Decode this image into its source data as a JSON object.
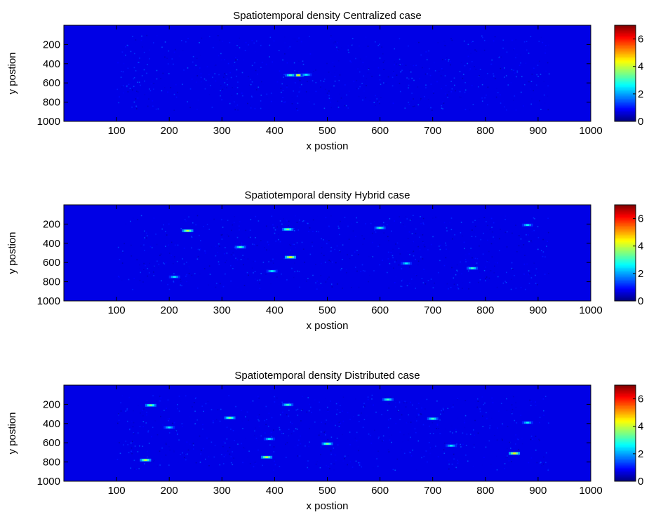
{
  "chart_data": [
    {
      "type": "heatmap",
      "title": "Spatiotemporal density Centralized case",
      "xlabel": "x postion",
      "ylabel": "y postion",
      "xlim": [
        0,
        1000
      ],
      "ylim": [
        0,
        1000
      ],
      "y_reversed": true,
      "xticks": [
        100,
        200,
        300,
        400,
        500,
        600,
        700,
        800,
        900,
        1000
      ],
      "yticks": [
        200,
        400,
        600,
        800,
        1000
      ],
      "colorbar": {
        "range": [
          0,
          7
        ],
        "ticks": [
          0,
          2,
          4,
          6
        ],
        "colormap": "jet"
      },
      "hotspots": [
        {
          "x": 445,
          "y": 520,
          "value": 4.5
        },
        {
          "x": 430,
          "y": 520,
          "value": 3.0
        },
        {
          "x": 460,
          "y": 515,
          "value": 2.5
        }
      ]
    },
    {
      "type": "heatmap",
      "title": "Spatiotemporal density Hybrid case",
      "xlabel": "x postion",
      "ylabel": "y postion",
      "xlim": [
        0,
        1000
      ],
      "ylim": [
        0,
        1000
      ],
      "y_reversed": true,
      "xticks": [
        100,
        200,
        300,
        400,
        500,
        600,
        700,
        800,
        900,
        1000
      ],
      "yticks": [
        200,
        400,
        600,
        800,
        1000
      ],
      "colorbar": {
        "range": [
          0,
          7
        ],
        "ticks": [
          0,
          2,
          4,
          6
        ],
        "colormap": "jet"
      },
      "hotspots": [
        {
          "x": 235,
          "y": 270,
          "value": 4.0
        },
        {
          "x": 425,
          "y": 255,
          "value": 3.5
        },
        {
          "x": 600,
          "y": 240,
          "value": 3.0
        },
        {
          "x": 335,
          "y": 440,
          "value": 3.0
        },
        {
          "x": 430,
          "y": 545,
          "value": 4.5
        },
        {
          "x": 775,
          "y": 660,
          "value": 3.0
        },
        {
          "x": 650,
          "y": 610,
          "value": 2.5
        },
        {
          "x": 210,
          "y": 750,
          "value": 2.5
        },
        {
          "x": 395,
          "y": 690,
          "value": 2.5
        },
        {
          "x": 880,
          "y": 210,
          "value": 2.5
        }
      ]
    },
    {
      "type": "heatmap",
      "title": "Spatiotemporal density Distributed case",
      "xlabel": "x postion",
      "ylabel": "y postion",
      "xlim": [
        0,
        1000
      ],
      "ylim": [
        0,
        1000
      ],
      "y_reversed": true,
      "xticks": [
        100,
        200,
        300,
        400,
        500,
        600,
        700,
        800,
        900,
        1000
      ],
      "yticks": [
        200,
        400,
        600,
        800,
        1000
      ],
      "colorbar": {
        "range": [
          0,
          7
        ],
        "ticks": [
          0,
          2,
          4,
          6
        ],
        "colormap": "jet"
      },
      "hotspots": [
        {
          "x": 165,
          "y": 210,
          "value": 3.5
        },
        {
          "x": 155,
          "y": 780,
          "value": 4.0
        },
        {
          "x": 200,
          "y": 440,
          "value": 2.5
        },
        {
          "x": 315,
          "y": 340,
          "value": 3.5
        },
        {
          "x": 385,
          "y": 750,
          "value": 4.0
        },
        {
          "x": 425,
          "y": 205,
          "value": 3.0
        },
        {
          "x": 500,
          "y": 610,
          "value": 3.5
        },
        {
          "x": 615,
          "y": 150,
          "value": 3.0
        },
        {
          "x": 700,
          "y": 350,
          "value": 3.0
        },
        {
          "x": 735,
          "y": 630,
          "value": 2.5
        },
        {
          "x": 855,
          "y": 710,
          "value": 4.5
        },
        {
          "x": 880,
          "y": 390,
          "value": 2.5
        },
        {
          "x": 390,
          "y": 560,
          "value": 2.5
        }
      ]
    }
  ]
}
